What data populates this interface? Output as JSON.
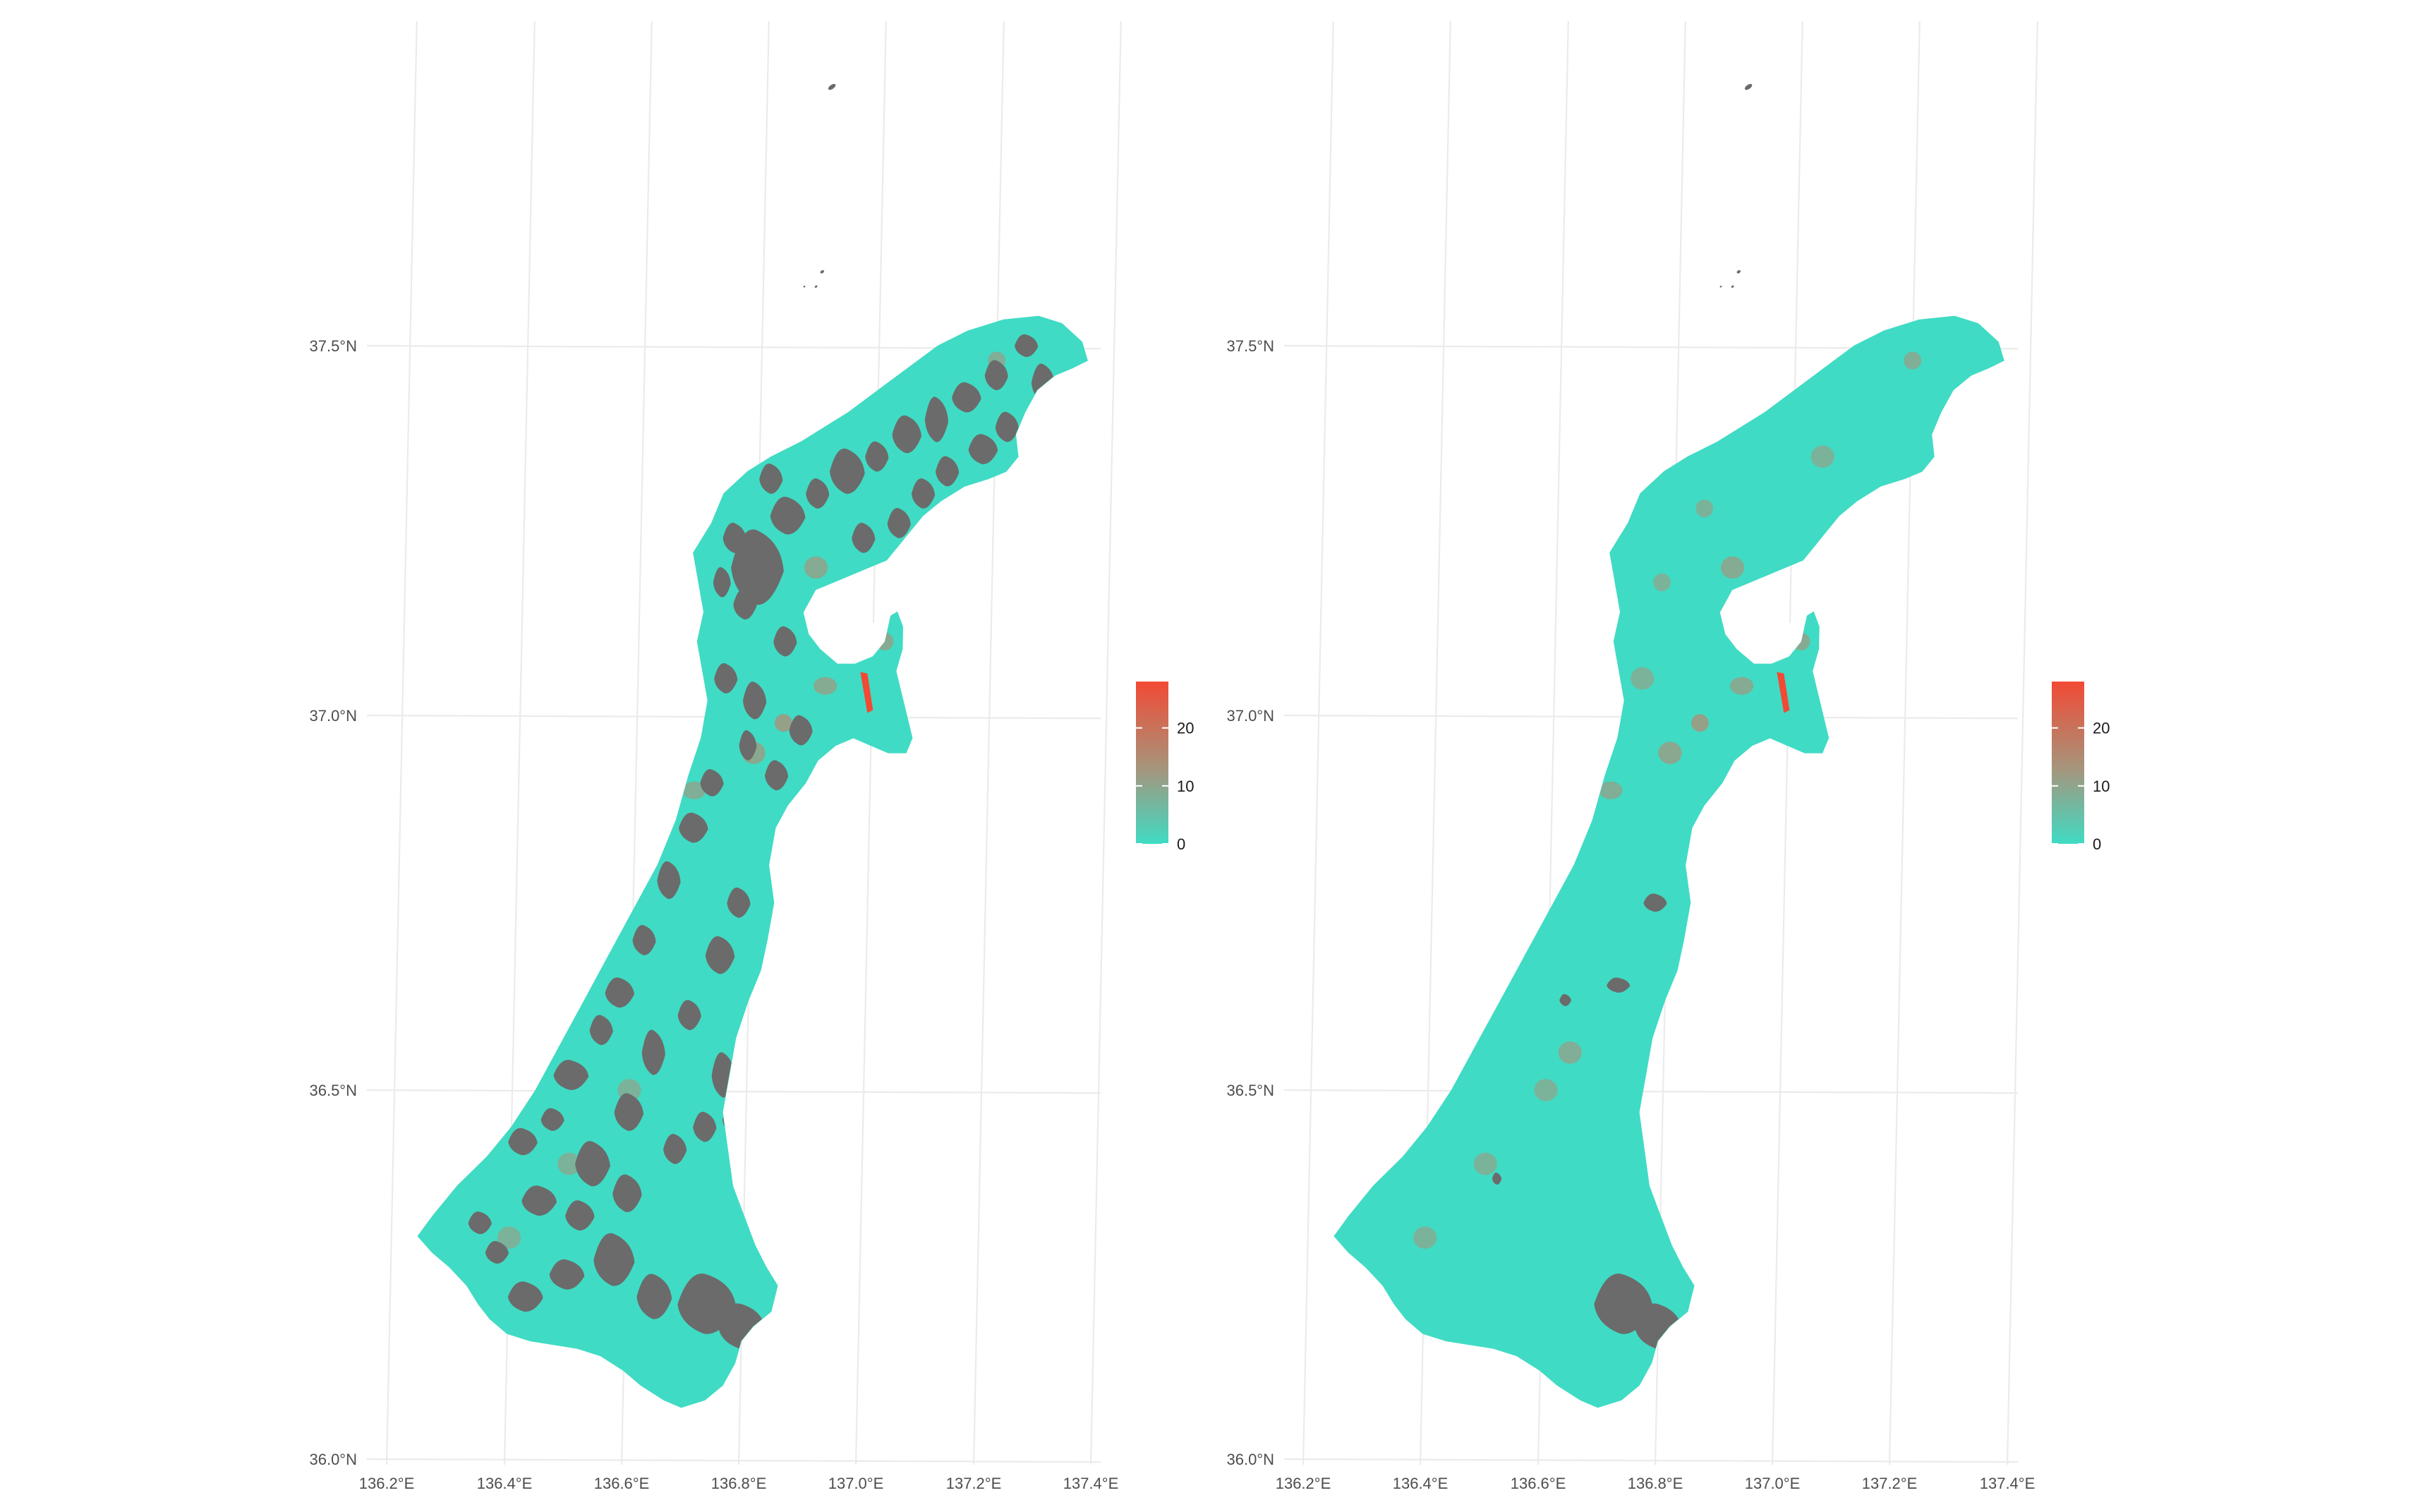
{
  "colors": {
    "fill_low": "#40dbc4",
    "fill_mid": "#a3977e",
    "fill_high": "#f24a34",
    "missing": "#6b6b6b",
    "grid": "#ebebeb",
    "background": "#ffffff"
  },
  "chart_data": [
    {
      "type": "choropleth-map",
      "panel": "left",
      "region": "Ishikawa Prefecture municipalities (sub-areas)",
      "lon_ticks": [
        "136.2°E",
        "136.4°E",
        "136.6°E",
        "136.8°E",
        "137.0°E",
        "137.2°E",
        "137.4°E"
      ],
      "lat_ticks": [
        "36.0°N",
        "36.5°N",
        "37.0°N",
        "37.5°N"
      ],
      "xlim": [
        136.2,
        137.4
      ],
      "ylim": [
        36.0,
        37.9
      ],
      "legend": {
        "title": "",
        "position": "right",
        "breaks": [
          0,
          10,
          20
        ],
        "labels": [
          "0",
          "10",
          "20"
        ],
        "min": 0,
        "max": 28
      },
      "missing_areas": "many"
    },
    {
      "type": "choropleth-map",
      "panel": "right",
      "region": "Ishikawa Prefecture municipalities (sub-areas)",
      "lon_ticks": [
        "136.2°E",
        "136.4°E",
        "136.6°E",
        "136.8°E",
        "137.0°E",
        "137.2°E",
        "137.4°E"
      ],
      "lat_ticks": [
        "36.0°N",
        "36.5°N",
        "37.0°N",
        "37.5°N"
      ],
      "xlim": [
        136.2,
        137.4
      ],
      "ylim": [
        36.0,
        37.9
      ],
      "legend": {
        "title": "",
        "position": "right",
        "breaks": [
          0,
          10,
          20
        ],
        "labels": [
          "0",
          "10",
          "20"
        ],
        "min": 0,
        "max": 28
      },
      "missing_areas": "few"
    }
  ]
}
